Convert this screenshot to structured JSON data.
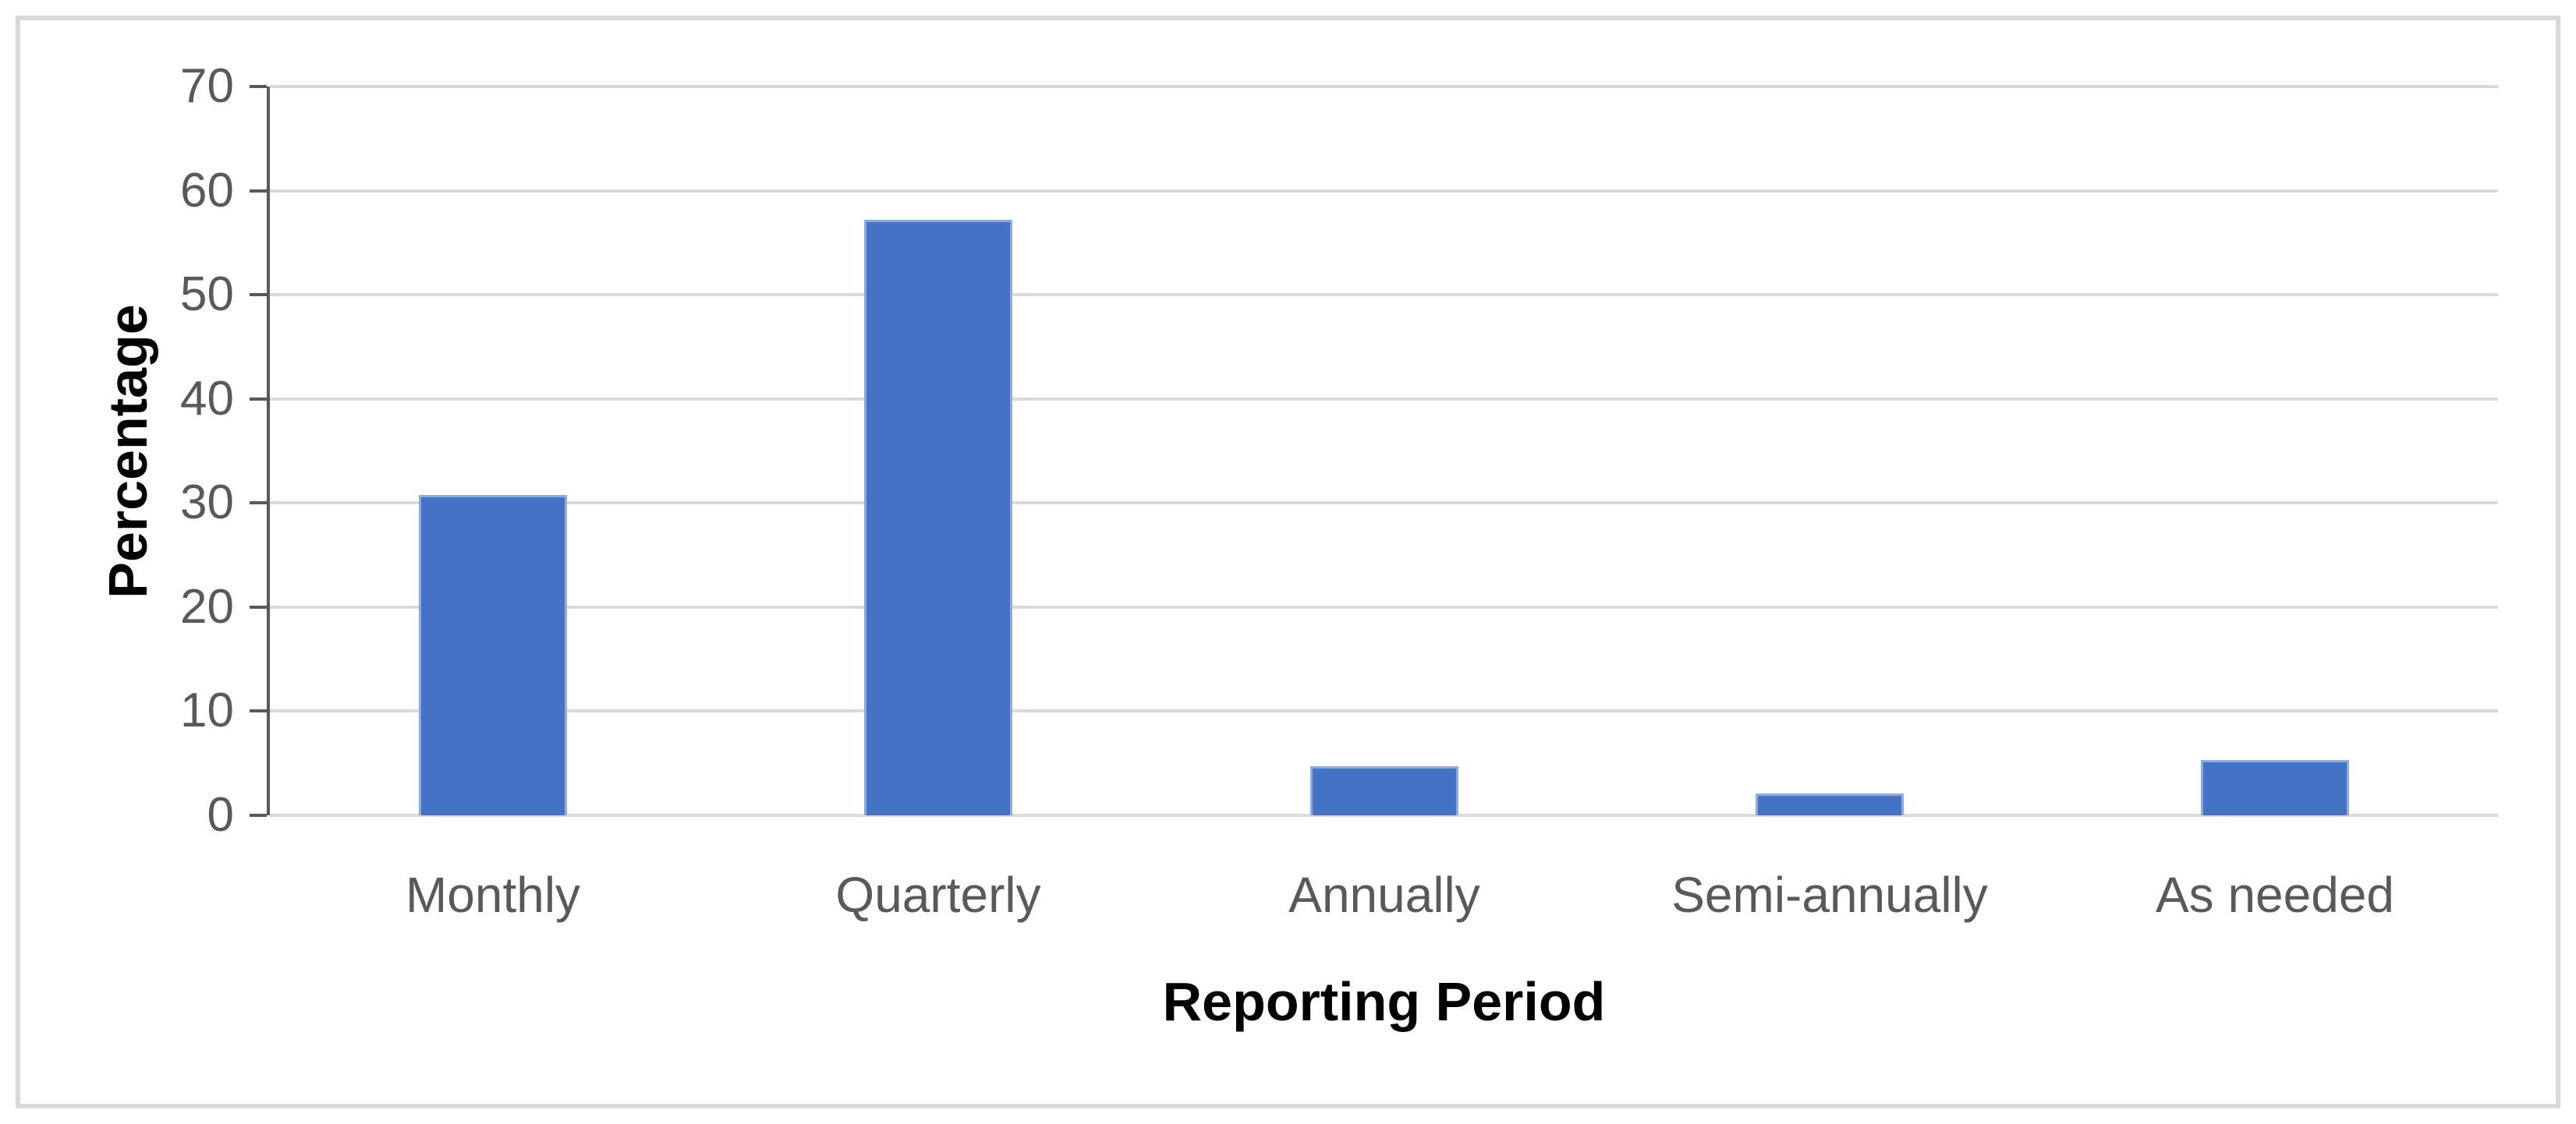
{
  "chart_data": {
    "type": "bar",
    "title": "",
    "categories": [
      "Monthly",
      "Quarterly",
      "Annually",
      "Semi-annually",
      "As needed"
    ],
    "values": [
      30.8,
      57.2,
      4.7,
      2.1,
      5.3
    ],
    "xlabel": "Reporting Period",
    "ylabel": "Percentage",
    "ylim": [
      0,
      70
    ],
    "yticks": [
      0,
      10,
      20,
      30,
      40,
      50,
      60,
      70
    ],
    "grid": true,
    "legend": false,
    "colors": {
      "bar_fill": "#4472C4",
      "bar_border": "#8FAADC",
      "gridline": "#D9D9D9",
      "axis_line": "#595959",
      "tick_label": "#595959",
      "category_label": "#595959",
      "axis_title": "#000000",
      "frame_border": "#D9D9D9",
      "background": "#FFFFFF"
    }
  }
}
